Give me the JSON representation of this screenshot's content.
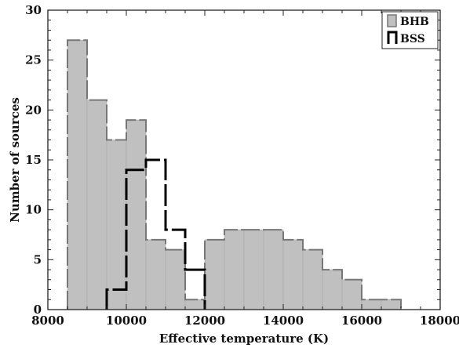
{
  "chart_data": {
    "type": "histogram",
    "xlabel": "Effective temperature (K)",
    "ylabel": "Number of sources",
    "xlim": [
      8000,
      18000
    ],
    "ylim": [
      0,
      30
    ],
    "xticks": [
      8000,
      10000,
      12000,
      14000,
      16000,
      18000
    ],
    "yticks": [
      0,
      5,
      10,
      15,
      20,
      25,
      30
    ],
    "bin_width": 500,
    "grid": false,
    "legend_placement": "top-right",
    "series": [
      {
        "name": "BHB",
        "style": "filled",
        "fill_color": "#c0c0c0",
        "edge_color": "#777777",
        "bin_starts": [
          8500,
          9000,
          9500,
          10000,
          10500,
          11000,
          11500,
          12000,
          12500,
          13000,
          13500,
          14000,
          14500,
          15000,
          15500,
          16000,
          16500
        ],
        "values": [
          27,
          21,
          17,
          19,
          7,
          6,
          1,
          7,
          8,
          8,
          8,
          7,
          6,
          4,
          3,
          1,
          1
        ]
      },
      {
        "name": "BSS",
        "style": "step",
        "edge_color": "#000000",
        "bin_starts": [
          9500,
          10000,
          10500,
          11000,
          11500
        ],
        "values": [
          2,
          14,
          15,
          8,
          4
        ]
      }
    ]
  }
}
